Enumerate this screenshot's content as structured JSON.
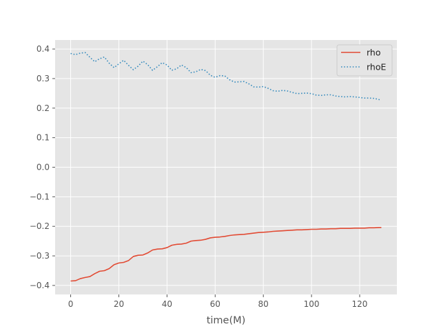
{
  "chart_data": {
    "type": "line",
    "title": "",
    "xlabel": "time(M)",
    "ylabel": "",
    "xlim": [
      -6.45,
      135.45
    ],
    "ylim": [
      -0.4305,
      0.4305
    ],
    "xticks": [
      "0",
      "20",
      "40",
      "60",
      "80",
      "100",
      "120"
    ],
    "xtick_values": [
      0,
      20,
      40,
      60,
      80,
      100,
      120
    ],
    "yticks": [
      "−0.4",
      "−0.3",
      "−0.2",
      "−0.1",
      "0.0",
      "0.1",
      "0.2",
      "0.3",
      "0.4"
    ],
    "ytick_values": [
      -0.4,
      -0.3,
      -0.2,
      -0.1,
      0.0,
      0.1,
      0.2,
      0.3,
      0.4
    ],
    "grid": true,
    "legend_position": "top-right",
    "series": [
      {
        "name": "rho",
        "color": "#E24A33",
        "style": "solid",
        "x": [
          0,
          2,
          4,
          6,
          8,
          10,
          12,
          14,
          16,
          18,
          20,
          22,
          24,
          26,
          28,
          30,
          32,
          34,
          36,
          38,
          40,
          42,
          44,
          46,
          48,
          50,
          52,
          54,
          56,
          58,
          60,
          62,
          64,
          66,
          68,
          70,
          72,
          74,
          76,
          78,
          80,
          82,
          84,
          86,
          88,
          90,
          92,
          94,
          96,
          98,
          100,
          102,
          104,
          106,
          108,
          110,
          112,
          114,
          116,
          118,
          120,
          122,
          124,
          126,
          128,
          129
        ],
        "y": [
          -0.385,
          -0.384,
          -0.377,
          -0.373,
          -0.37,
          -0.36,
          -0.352,
          -0.35,
          -0.343,
          -0.33,
          -0.324,
          -0.322,
          -0.316,
          -0.302,
          -0.298,
          -0.297,
          -0.29,
          -0.28,
          -0.277,
          -0.276,
          -0.272,
          -0.264,
          -0.261,
          -0.26,
          -0.257,
          -0.25,
          -0.248,
          -0.247,
          -0.244,
          -0.239,
          -0.237,
          -0.236,
          -0.234,
          -0.231,
          -0.229,
          -0.228,
          -0.227,
          -0.225,
          -0.223,
          -0.221,
          -0.22,
          -0.219,
          -0.217,
          -0.216,
          -0.215,
          -0.214,
          -0.213,
          -0.212,
          -0.212,
          -0.211,
          -0.21,
          -0.21,
          -0.209,
          -0.209,
          -0.208,
          -0.208,
          -0.207,
          -0.207,
          -0.207,
          -0.206,
          -0.206,
          -0.206,
          -0.205,
          -0.205,
          -0.204,
          -0.204
        ]
      },
      {
        "name": "rhoE",
        "color": "#348ABD",
        "style": "dotted",
        "x": [
          0,
          2,
          4,
          6,
          8,
          10,
          12,
          14,
          16,
          18,
          20,
          22,
          24,
          26,
          28,
          30,
          32,
          34,
          36,
          38,
          40,
          42,
          44,
          46,
          48,
          50,
          52,
          54,
          56,
          58,
          60,
          62,
          64,
          66,
          68,
          70,
          72,
          74,
          76,
          78,
          80,
          82,
          84,
          86,
          88,
          90,
          92,
          94,
          96,
          98,
          100,
          102,
          104,
          106,
          108,
          110,
          112,
          114,
          116,
          118,
          120,
          122,
          124,
          126,
          128,
          129
        ],
        "y": [
          0.385,
          0.381,
          0.386,
          0.388,
          0.372,
          0.357,
          0.367,
          0.373,
          0.352,
          0.337,
          0.35,
          0.362,
          0.345,
          0.33,
          0.342,
          0.359,
          0.347,
          0.328,
          0.34,
          0.354,
          0.346,
          0.328,
          0.333,
          0.346,
          0.337,
          0.32,
          0.323,
          0.331,
          0.327,
          0.311,
          0.304,
          0.31,
          0.309,
          0.296,
          0.288,
          0.289,
          0.29,
          0.282,
          0.272,
          0.271,
          0.273,
          0.267,
          0.259,
          0.257,
          0.26,
          0.258,
          0.253,
          0.249,
          0.25,
          0.251,
          0.249,
          0.244,
          0.243,
          0.245,
          0.245,
          0.241,
          0.239,
          0.238,
          0.239,
          0.238,
          0.236,
          0.234,
          0.234,
          0.233,
          0.229,
          0.228
        ]
      }
    ]
  }
}
